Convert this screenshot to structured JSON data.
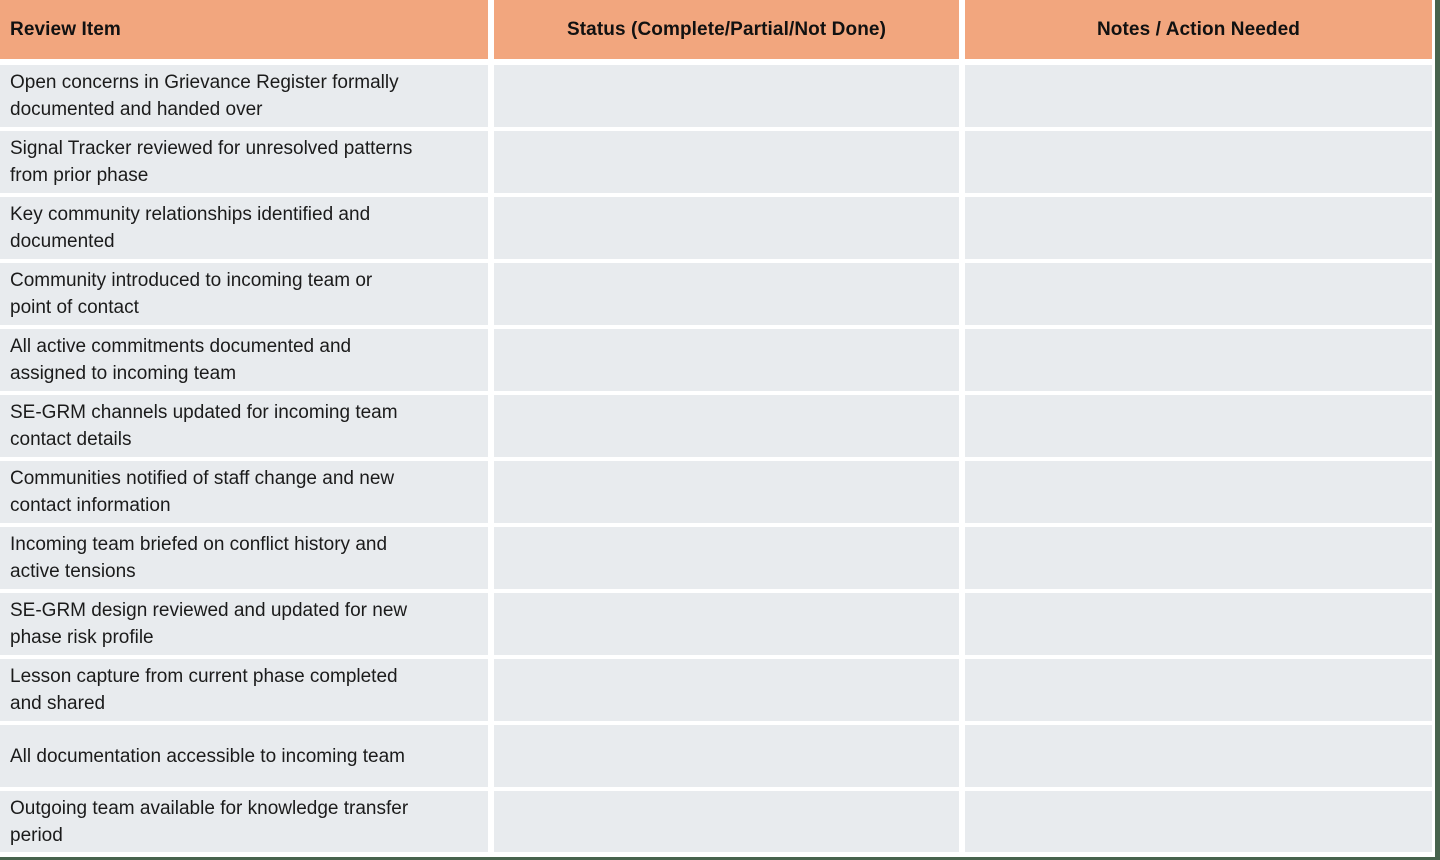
{
  "colors": {
    "header_bg": "#F2A67E",
    "row_bg": "#E8EBEE",
    "grid": "#FFFFFF",
    "canvas_bg": "#47634D",
    "text": "#1B1B1B"
  },
  "table": {
    "columns": [
      {
        "label": "Review Item"
      },
      {
        "label": "Status (Complete/Partial/Not Done)"
      },
      {
        "label": "Notes / Action Needed"
      }
    ],
    "rows": [
      {
        "item": "Open concerns in Grievance Register formally\ndocumented and handed over",
        "status": "",
        "notes": ""
      },
      {
        "item": "Signal Tracker reviewed for unresolved patterns\nfrom prior phase",
        "status": "",
        "notes": ""
      },
      {
        "item": "Key community relationships identified and\ndocumented",
        "status": "",
        "notes": ""
      },
      {
        "item": "Community introduced to incoming team or\npoint of contact",
        "status": "",
        "notes": ""
      },
      {
        "item": "All active commitments documented and\nassigned to incoming team",
        "status": "",
        "notes": ""
      },
      {
        "item": "SE-GRM channels updated for incoming team\ncontact details",
        "status": "",
        "notes": ""
      },
      {
        "item": "Communities notified of staff change and new\ncontact information",
        "status": "",
        "notes": ""
      },
      {
        "item": "Incoming team briefed on conflict history and\nactive tensions",
        "status": "",
        "notes": ""
      },
      {
        "item": "SE-GRM design reviewed and updated for new\nphase risk profile",
        "status": "",
        "notes": ""
      },
      {
        "item": "Lesson capture from current phase completed\nand shared",
        "status": "",
        "notes": ""
      },
      {
        "item": "All documentation accessible to incoming team",
        "status": "",
        "notes": ""
      },
      {
        "item": "Outgoing team available for knowledge transfer\nperiod",
        "status": "",
        "notes": ""
      }
    ]
  }
}
